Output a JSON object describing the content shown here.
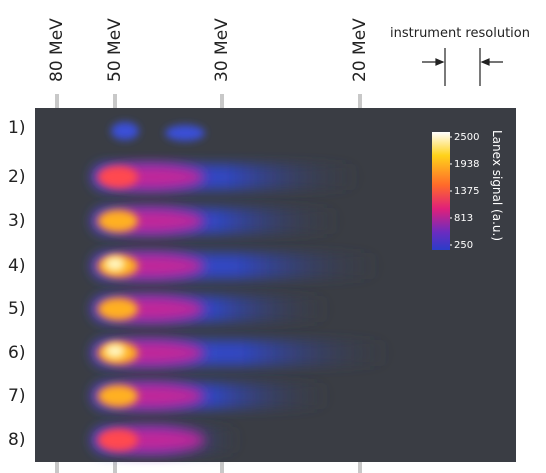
{
  "chart_data": {
    "type": "image",
    "energy_labels": [
      "80 MeV",
      "50 MeV",
      "30 MeV",
      "20 MeV"
    ],
    "rows": [
      "1)",
      "2)",
      "3)",
      "4)",
      "5)",
      "6)",
      "7)",
      "8)"
    ],
    "annotation": "instrument resolution",
    "colorbar": {
      "label": "Lanex signal (a.u.)",
      "lim": [
        250,
        2500
      ],
      "ticks": [
        2500,
        1938,
        1375,
        813,
        250
      ]
    }
  }
}
